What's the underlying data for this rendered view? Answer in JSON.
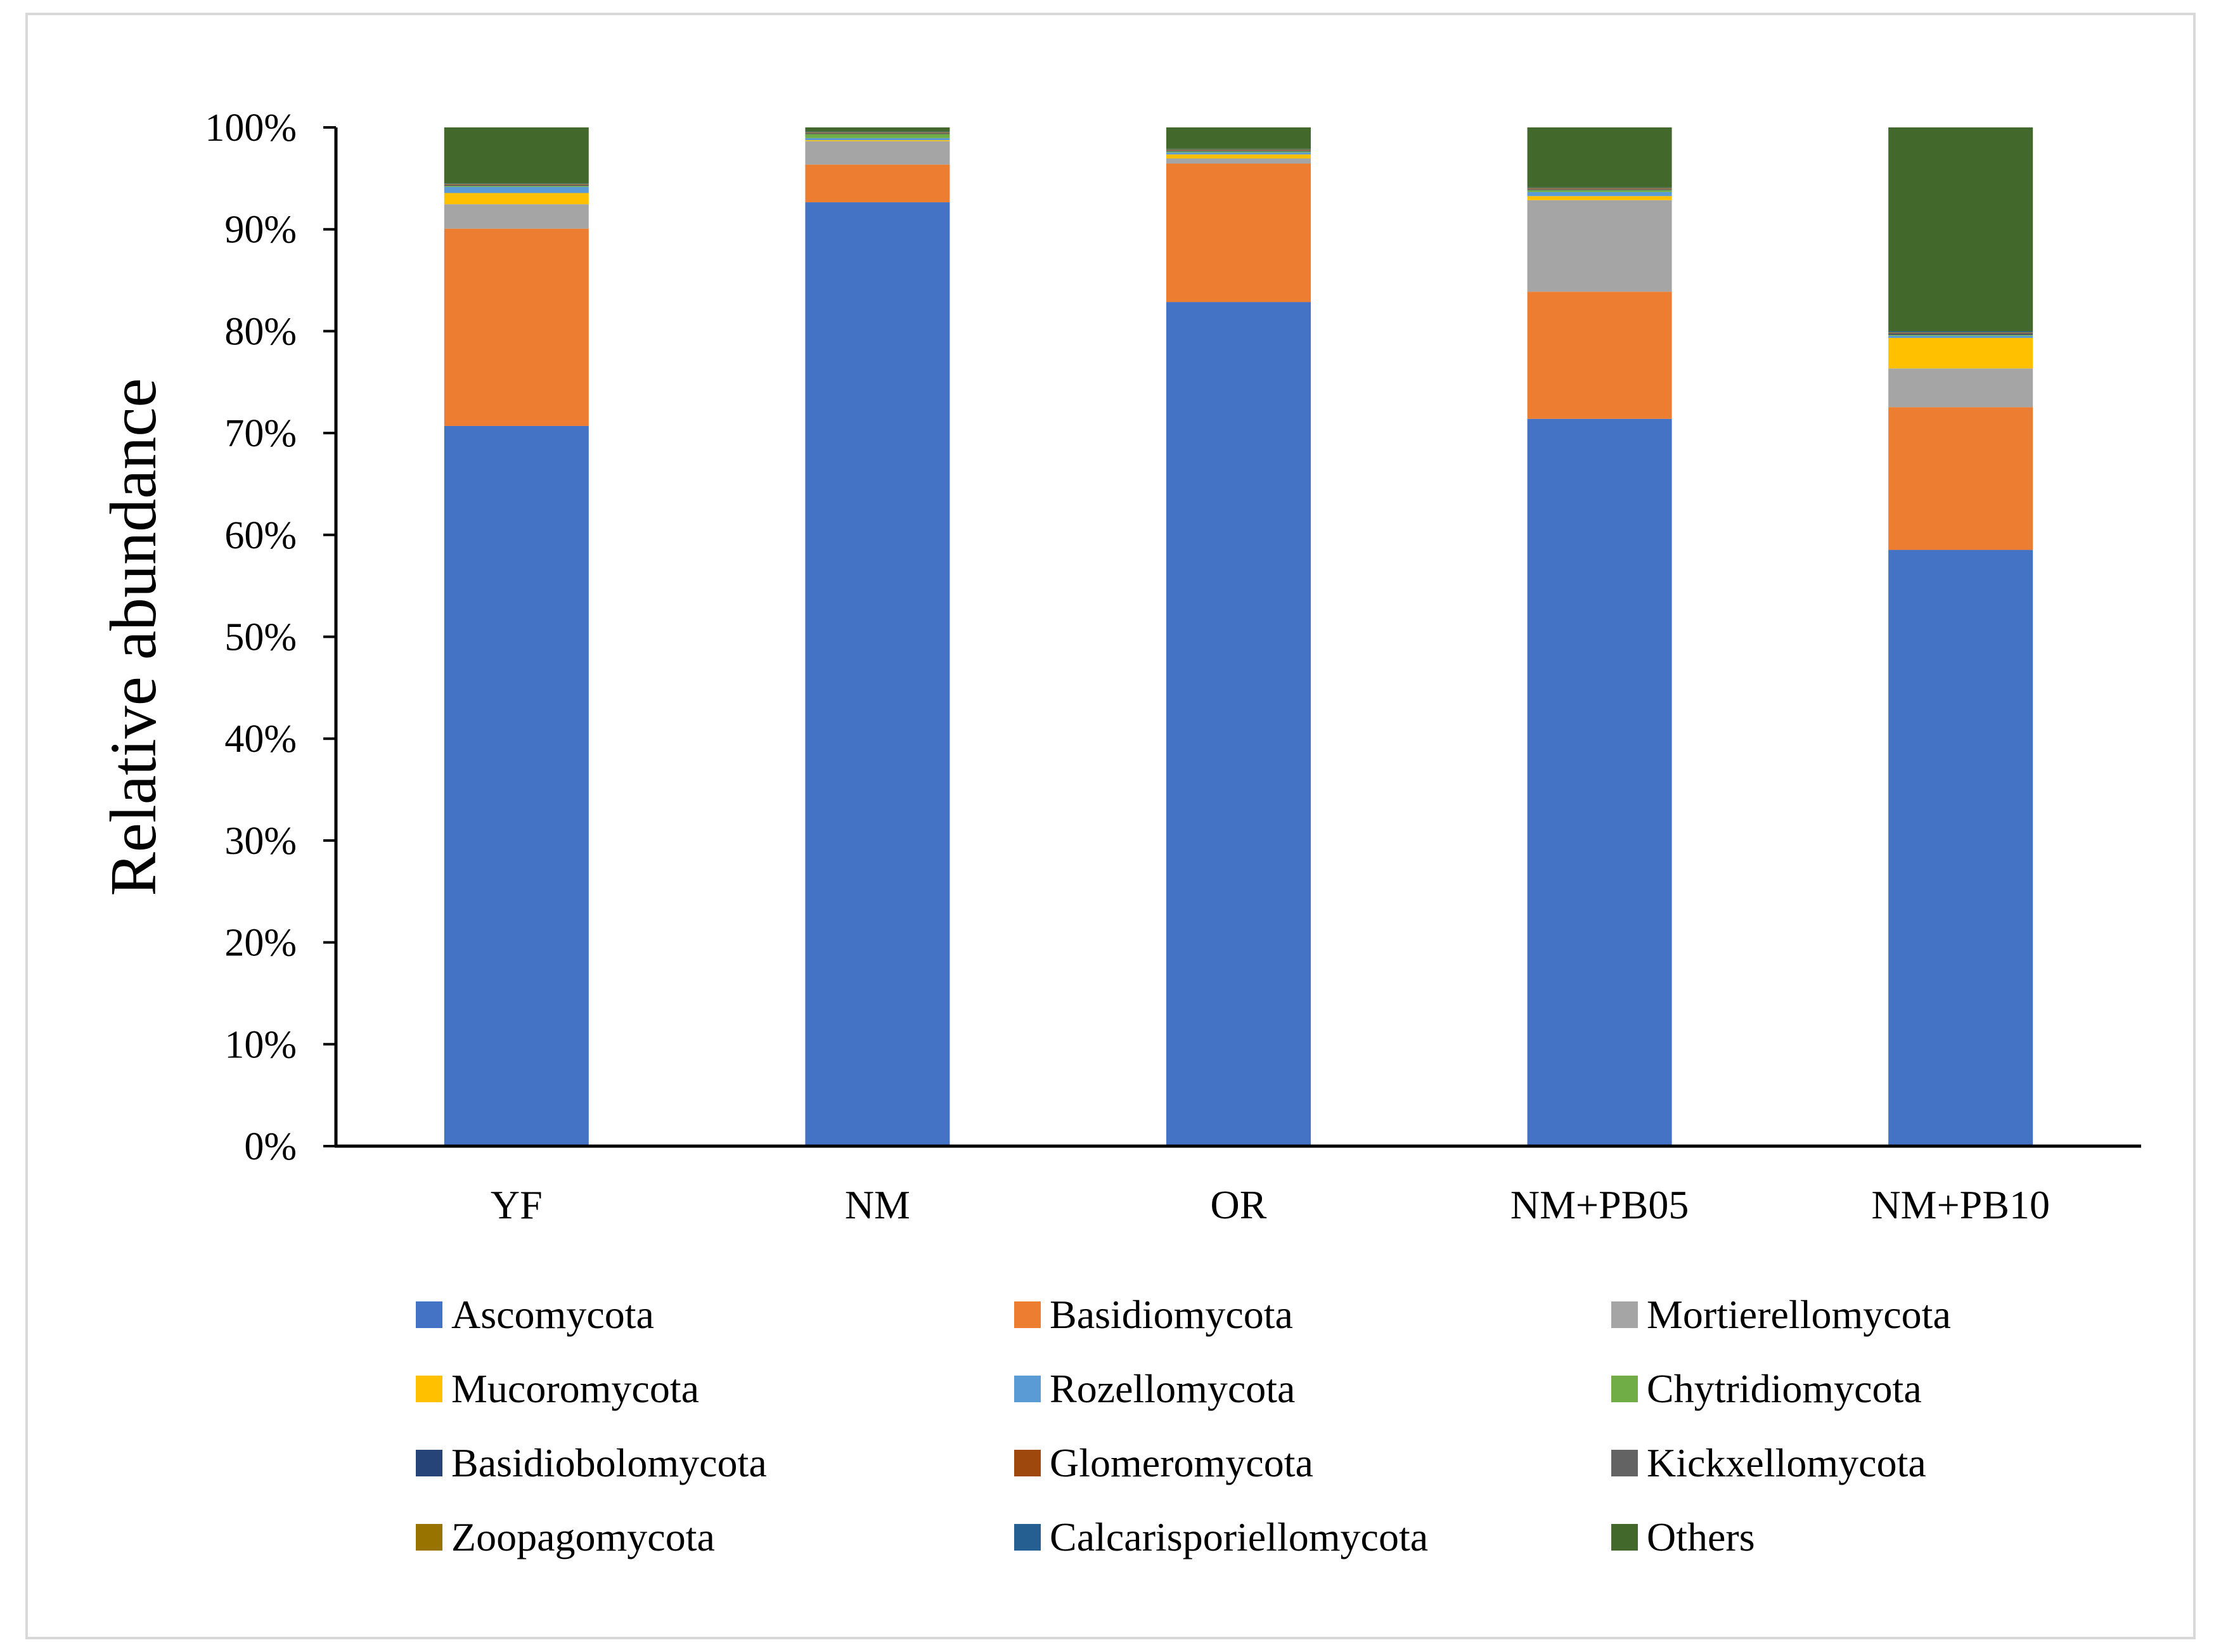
{
  "chart_data": {
    "type": "bar",
    "stacked": true,
    "percent": true,
    "title": "",
    "xlabel": "",
    "ylabel": "Relative abundance",
    "ylim": [
      0,
      100
    ],
    "yticks": [
      "0%",
      "10%",
      "20%",
      "30%",
      "40%",
      "50%",
      "60%",
      "70%",
      "80%",
      "90%",
      "100%"
    ],
    "categories": [
      "YF",
      "NM",
      "OR",
      "NM+PB05",
      "NM+PB10"
    ],
    "series": [
      {
        "name": "Ascomycota",
        "color": "#4472C4",
        "values": [
          70.8,
          92.7,
          82.9,
          71.5,
          58.5
        ]
      },
      {
        "name": "Basidiomycota",
        "color": "#ED7D31",
        "values": [
          19.4,
          3.7,
          13.6,
          12.5,
          14.0
        ]
      },
      {
        "name": "Mortierellomycota",
        "color": "#A5A5A5",
        "values": [
          2.4,
          2.3,
          0.5,
          9.0,
          3.8
        ]
      },
      {
        "name": "Mucoromycota",
        "color": "#FFC000",
        "values": [
          1.1,
          0.1,
          0.4,
          0.4,
          3.0
        ]
      },
      {
        "name": "Rozellomycota",
        "color": "#5B9BD5",
        "values": [
          0.6,
          0.2,
          0.2,
          0.4,
          0.2
        ]
      },
      {
        "name": "Chytridiomycota",
        "color": "#70AD47",
        "values": [
          0.1,
          0.4,
          0.1,
          0.2,
          0.1
        ]
      },
      {
        "name": "Basidiobolomycota",
        "color": "#264478",
        "values": [
          0.05,
          0.05,
          0.05,
          0.05,
          0.1
        ]
      },
      {
        "name": "Glomeromycota",
        "color": "#9E480E",
        "values": [
          0.05,
          0.05,
          0.05,
          0.05,
          0.05
        ]
      },
      {
        "name": "Kickxellomycota",
        "color": "#636363",
        "values": [
          0.05,
          0.05,
          0.05,
          0.05,
          0.05
        ]
      },
      {
        "name": "Zoopagomycota",
        "color": "#997300",
        "values": [
          0.05,
          0.05,
          0.05,
          0.05,
          0.05
        ]
      },
      {
        "name": "Calcarisporiellomycota",
        "color": "#255E91",
        "values": [
          0.05,
          0.05,
          0.05,
          0.05,
          0.1
        ]
      },
      {
        "name": "Others",
        "color": "#43682B",
        "values": [
          5.5,
          0.4,
          2.1,
          5.9,
          20.0
        ]
      }
    ],
    "legend": "bottom",
    "grid": false
  }
}
